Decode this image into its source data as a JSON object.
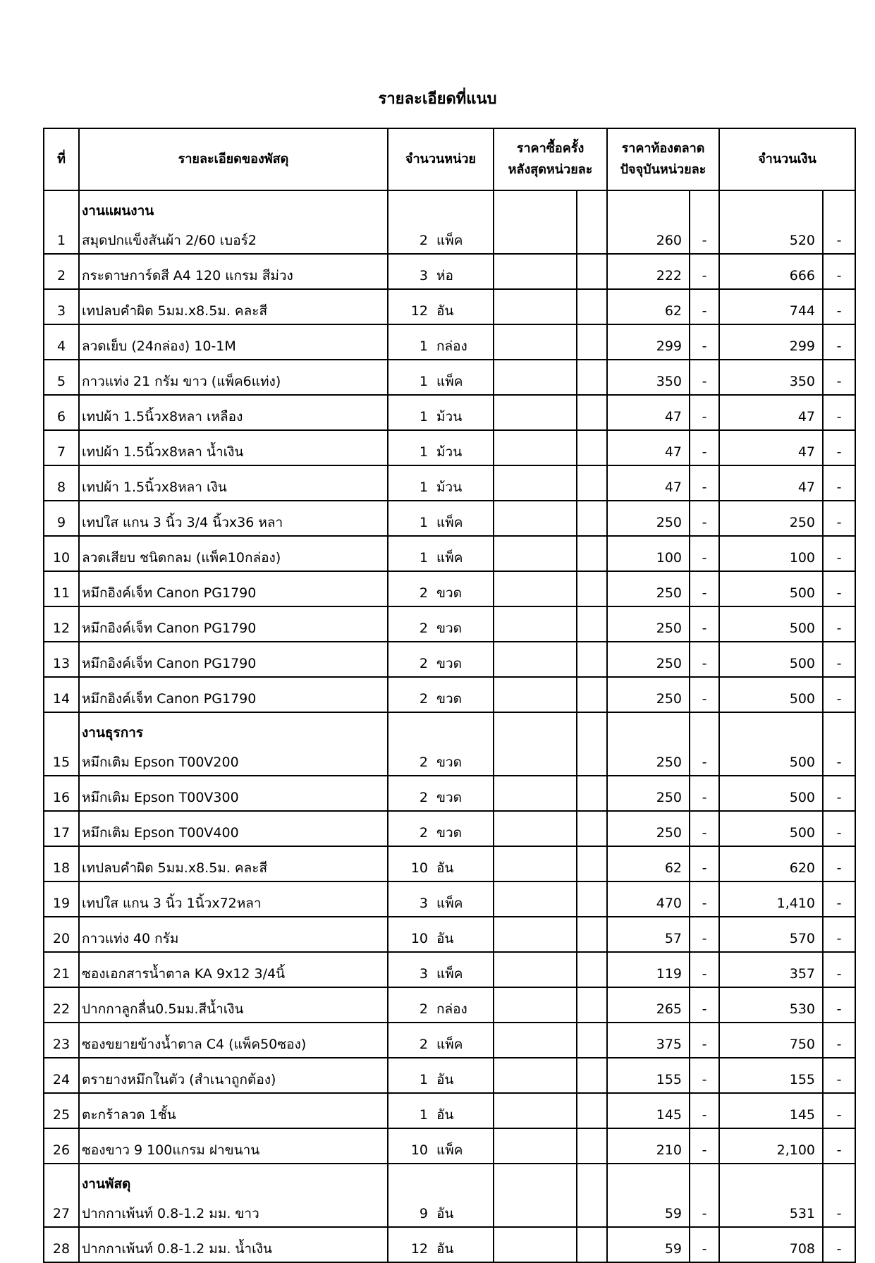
{
  "title": "รายละเอียดที่แนบ",
  "headers": {
    "no": "ที่",
    "description": "รายละเอียดของพัสดุ",
    "quantity": "จำนวนหน่วย",
    "last_price_line1": "ราคาซื้อครั้ง",
    "last_price_line2": "หลังสุดหน่วยละ",
    "market_price_line1": "ราคาท้องตลาด",
    "market_price_line2": "ปัจจุบันหน่วยละ",
    "amount": "จำนวนเงิน"
  },
  "rows": [
    {
      "section": "งานแผนงาน",
      "no": "1",
      "desc": "สมุดปกแข็งสันผ้า 2/60 เบอร์2",
      "qty": "2",
      "unit": "แพ็ค",
      "price": "260",
      "price_dec": "-",
      "amount": "520",
      "amount_dec": "-"
    },
    {
      "no": "2",
      "desc": "กระดาษการ์ดสี A4 120 แกรม สีม่วง",
      "qty": "3",
      "unit": "ห่อ",
      "price": "222",
      "price_dec": "-",
      "amount": "666",
      "amount_dec": "-"
    },
    {
      "no": "3",
      "desc": "เทปลบคำผิด 5มม.x8.5ม. คละสี",
      "qty": "12",
      "unit": "อัน",
      "price": "62",
      "price_dec": "-",
      "amount": "744",
      "amount_dec": "-"
    },
    {
      "no": "4",
      "desc": "ลวดเย็บ (24กล่อง) 10-1M",
      "qty": "1",
      "unit": "กล่อง",
      "price": "299",
      "price_dec": "-",
      "amount": "299",
      "amount_dec": "-"
    },
    {
      "no": "5",
      "desc": "กาวแท่ง 21 กรัม ขาว (แพ็ค6แท่ง)",
      "qty": "1",
      "unit": "แพ็ค",
      "price": "350",
      "price_dec": "-",
      "amount": "350",
      "amount_dec": "-"
    },
    {
      "no": "6",
      "desc": "เทปผ้า 1.5นิ้วx8หลา เหลือง",
      "qty": "1",
      "unit": "ม้วน",
      "price": "47",
      "price_dec": "-",
      "amount": "47",
      "amount_dec": "-"
    },
    {
      "no": "7",
      "desc": "เทปผ้า 1.5นิ้วx8หลา น้ำเงิน",
      "qty": "1",
      "unit": "ม้วน",
      "price": "47",
      "price_dec": "-",
      "amount": "47",
      "amount_dec": "-"
    },
    {
      "no": "8",
      "desc": "เทปผ้า 1.5นิ้วx8หลา เงิน",
      "qty": "1",
      "unit": "ม้วน",
      "price": "47",
      "price_dec": "-",
      "amount": "47",
      "amount_dec": "-"
    },
    {
      "no": "9",
      "desc": "เทปใส แกน 3 นิ้ว 3/4 นิ้วx36 หลา",
      "qty": "1",
      "unit": "แพ็ค",
      "price": "250",
      "price_dec": "-",
      "amount": "250",
      "amount_dec": "-"
    },
    {
      "no": "10",
      "desc": "ลวดเสียบ ชนิดกลม (แพ็ค10กล่อง)",
      "qty": "1",
      "unit": "แพ็ค",
      "price": "100",
      "price_dec": "-",
      "amount": "100",
      "amount_dec": "-"
    },
    {
      "no": "11",
      "desc": "หมึกอิงค์เจ็ท Canon PG1790",
      "qty": "2",
      "unit": "ขวด",
      "price": "250",
      "price_dec": "-",
      "amount": "500",
      "amount_dec": "-"
    },
    {
      "no": "12",
      "desc": "หมึกอิงค์เจ็ท Canon PG1790",
      "qty": "2",
      "unit": "ขวด",
      "price": "250",
      "price_dec": "-",
      "amount": "500",
      "amount_dec": "-"
    },
    {
      "no": "13",
      "desc": "หมึกอิงค์เจ็ท Canon PG1790",
      "qty": "2",
      "unit": "ขวด",
      "price": "250",
      "price_dec": "-",
      "amount": "500",
      "amount_dec": "-"
    },
    {
      "no": "14",
      "desc": "หมึกอิงค์เจ็ท Canon PG1790",
      "qty": "2",
      "unit": "ขวด",
      "price": "250",
      "price_dec": "-",
      "amount": "500",
      "amount_dec": "-"
    },
    {
      "section": "งานธุรการ",
      "no": "15",
      "desc": "หมึกเติม Epson T00V200",
      "qty": "2",
      "unit": "ขวด",
      "price": "250",
      "price_dec": "-",
      "amount": "500",
      "amount_dec": "-"
    },
    {
      "no": "16",
      "desc": "หมึกเติม Epson T00V300",
      "qty": "2",
      "unit": "ขวด",
      "price": "250",
      "price_dec": "-",
      "amount": "500",
      "amount_dec": "-"
    },
    {
      "no": "17",
      "desc": "หมึกเติม Epson T00V400",
      "qty": "2",
      "unit": "ขวด",
      "price": "250",
      "price_dec": "-",
      "amount": "500",
      "amount_dec": "-"
    },
    {
      "no": "18",
      "desc": "เทปลบคำผิด 5มม.x8.5ม. คละสี",
      "qty": "10",
      "unit": "อัน",
      "price": "62",
      "price_dec": "-",
      "amount": "620",
      "amount_dec": "-"
    },
    {
      "no": "19",
      "desc": "เทปใส แกน 3 นิ้ว 1นิ้วx72หลา",
      "qty": "3",
      "unit": "แพ็ค",
      "price": "470",
      "price_dec": "-",
      "amount": "1,410",
      "amount_dec": "-"
    },
    {
      "no": "20",
      "desc": "กาวแท่ง 40 กรัม",
      "qty": "10",
      "unit": "อัน",
      "price": "57",
      "price_dec": "-",
      "amount": "570",
      "amount_dec": "-"
    },
    {
      "no": "21",
      "desc": "ซองเอกสารน้ำตาล KA 9x12 3/4นิ้",
      "qty": "3",
      "unit": "แพ็ค",
      "price": "119",
      "price_dec": "-",
      "amount": "357",
      "amount_dec": "-"
    },
    {
      "no": "22",
      "desc": "ปากกาลูกลื่น0.5มม.สีน้ำเงิน",
      "qty": "2",
      "unit": "กล่อง",
      "price": "265",
      "price_dec": "-",
      "amount": "530",
      "amount_dec": "-"
    },
    {
      "no": "23",
      "desc": "ซองขยายข้างน้ำตาล C4 (แพ็ค50ซอง)",
      "qty": "2",
      "unit": "แพ็ค",
      "price": "375",
      "price_dec": "-",
      "amount": "750",
      "amount_dec": "-"
    },
    {
      "no": "24",
      "desc": "ตรายางหมึกในตัว (สำเนาถูกต้อง)",
      "qty": "1",
      "unit": "อัน",
      "price": "155",
      "price_dec": "-",
      "amount": "155",
      "amount_dec": "-"
    },
    {
      "no": "25",
      "desc": "ตะกร้าลวด 1ชั้น",
      "qty": "1",
      "unit": "อัน",
      "price": "145",
      "price_dec": "-",
      "amount": "145",
      "amount_dec": "-"
    },
    {
      "no": "26",
      "desc": "ซองขาว 9 100แกรม ฝาขนาน",
      "qty": "10",
      "unit": "แพ็ค",
      "price": "210",
      "price_dec": "-",
      "amount": "2,100",
      "amount_dec": "-"
    },
    {
      "section": "งานพัสดุ",
      "no": "27",
      "desc": "ปากกาเพ้นท์ 0.8-1.2 มม. ขาว",
      "qty": "9",
      "unit": "อัน",
      "price": "59",
      "price_dec": "-",
      "amount": "531",
      "amount_dec": "-"
    },
    {
      "no": "28",
      "desc": "ปากกาเพ้นท์ 0.8-1.2 มม. น้ำเงิน",
      "qty": "12",
      "unit": "อัน",
      "price": "59",
      "price_dec": "-",
      "amount": "708",
      "amount_dec": "-"
    }
  ]
}
